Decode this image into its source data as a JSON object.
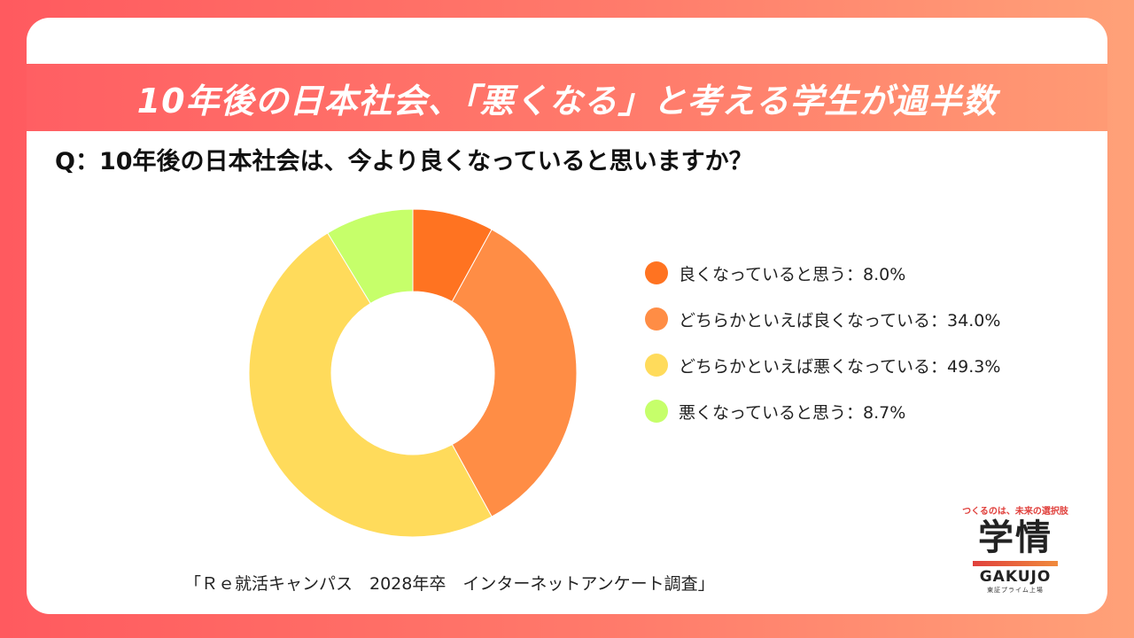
{
  "banner": {
    "title": "10年後の日本社会、「悪くなる」と考える学生が過半数"
  },
  "question": "Q：10年後の日本社会は、今より良くなっていると思いますか？",
  "chart_data": {
    "type": "pie",
    "style": "donut",
    "categories": [
      "良くなっていると思う",
      "どちらかといえば良くなっている",
      "どちらかといえば悪くなっている",
      "悪くなっていると思う"
    ],
    "values": [
      8.0,
      34.0,
      49.3,
      8.7
    ],
    "colors": [
      "#ff7321",
      "#ff8d45",
      "#ffdb5b",
      "#c6ff6a"
    ],
    "legend_labels": [
      "良くなっていると思う：8.0%",
      "どちらかといえば良くなっている：34.0%",
      "どちらかといえば悪くなっている：49.3%",
      "悪くなっていると思う：8.7%"
    ],
    "legend_position": "right"
  },
  "source": "「Ｒｅ就活キャンパス　2028年卒　インターネットアンケート調査」",
  "logo": {
    "tagline": "つくるのは、未来の選択肢",
    "main": "学情",
    "en": "GAKUJO",
    "sub": "東証プライム上場"
  }
}
